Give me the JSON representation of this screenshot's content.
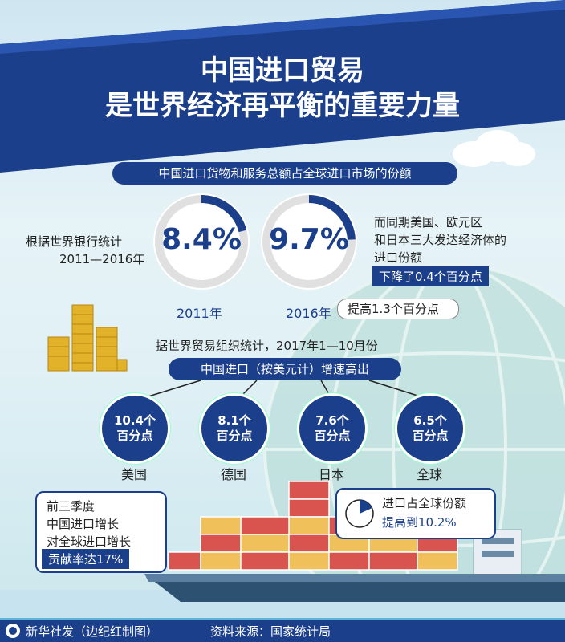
{
  "title": {
    "line1": "中国进口贸易",
    "line2": "是世界经济再平衡的重要力量"
  },
  "section1": {
    "header": "中国进口货物和服务总额占全球进口市场的份额",
    "left_text_1": "根据世界银行统计",
    "left_text_2": "2011—2016年",
    "ring_2011": {
      "value": "8.4%",
      "year": "2011年",
      "fraction": 0.084
    },
    "ring_2016": {
      "value": "9.7%",
      "year": "2016年",
      "fraction": 0.097
    },
    "right_text_1": "而同期美国、欧元区",
    "right_text_2": "和日本三大发达经济体的",
    "right_text_3": "进口份额",
    "right_tag": "下降了0.4个百分点",
    "increase_note": "提高1.3个百分点"
  },
  "section2": {
    "intro": "据世界贸易组织统计，2017年1—10月份",
    "header": "中国进口（按美元计）增速高出",
    "items": [
      {
        "value": "10.4个",
        "unit": "百分点",
        "country": "美国"
      },
      {
        "value": "8.1个",
        "unit": "百分点",
        "country": "德国"
      },
      {
        "value": "7.6个",
        "unit": "百分点",
        "country": "日本"
      },
      {
        "value": "6.5个",
        "unit": "百分点",
        "country": "全球"
      }
    ]
  },
  "callout_left": {
    "line1": "前三季度",
    "line2": "中国进口增长",
    "line3": "对全球进口增长",
    "tag": "贡献率达17%"
  },
  "callout_right": {
    "line1": "进口占全球份额",
    "line2": "提高到10.2%",
    "fraction": 0.102
  },
  "footer": {
    "credit": "新华社发（边纪红制图）",
    "source": "资料来源：国家统计局"
  },
  "colors": {
    "navy": "#1b3f8b",
    "ring_grey": "#e0e0e0"
  }
}
